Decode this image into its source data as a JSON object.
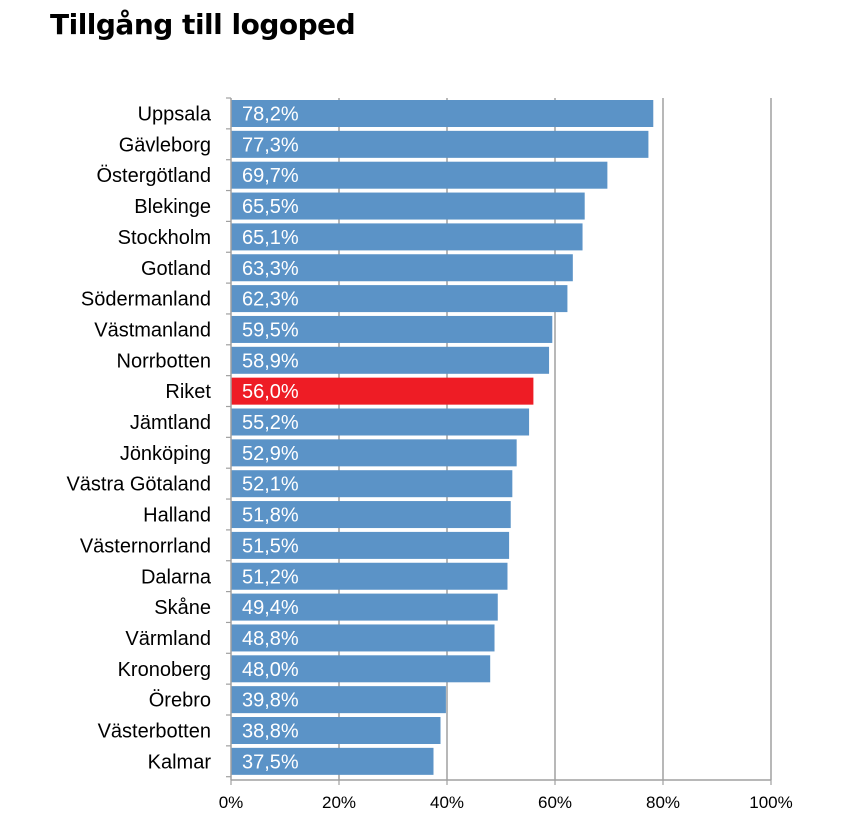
{
  "chart_data": {
    "type": "bar",
    "orientation": "horizontal",
    "title": "Tillgång till logoped",
    "categories": [
      "Uppsala",
      "Gävleborg",
      "Östergötland",
      "Blekinge",
      "Stockholm",
      "Gotland",
      "Södermanland",
      "Västmanland",
      "Norrbotten",
      "Riket",
      "Jämtland",
      "Jönköping",
      "Västra Götaland",
      "Halland",
      "Västernorrland",
      "Dalarna",
      "Skåne",
      "Värmland",
      "Kronoberg",
      "Örebro",
      "Västerbotten",
      "Kalmar"
    ],
    "values": [
      78.2,
      77.3,
      69.7,
      65.5,
      65.1,
      63.3,
      62.3,
      59.5,
      58.9,
      56.0,
      55.2,
      52.9,
      52.1,
      51.8,
      51.5,
      51.2,
      49.4,
      48.8,
      48.0,
      39.8,
      38.8,
      37.5
    ],
    "value_labels": [
      "78,2%",
      "77,3%",
      "69,7%",
      "65,5%",
      "65,1%",
      "63,3%",
      "62,3%",
      "59,5%",
      "58,9%",
      "56,0%",
      "55,2%",
      "52,9%",
      "52,1%",
      "51,8%",
      "51,5%",
      "51,2%",
      "49,4%",
      "48,8%",
      "48,0%",
      "39,8%",
      "38,8%",
      "37,5%"
    ],
    "highlight_category": "Riket",
    "xlim": [
      0,
      100
    ],
    "x_ticks": [
      0,
      20,
      40,
      60,
      80,
      100
    ],
    "x_tick_labels": [
      "0%",
      "20%",
      "40%",
      "60%",
      "80%",
      "100%"
    ],
    "xlabel": "",
    "ylabel": "",
    "grid": "vertical",
    "legend": "none",
    "colors": {
      "bar": "#5b93c7",
      "highlight": "#ee1c25",
      "grid": "#a0a0a0",
      "text": "#000000",
      "value_text": "#ffffff"
    }
  }
}
